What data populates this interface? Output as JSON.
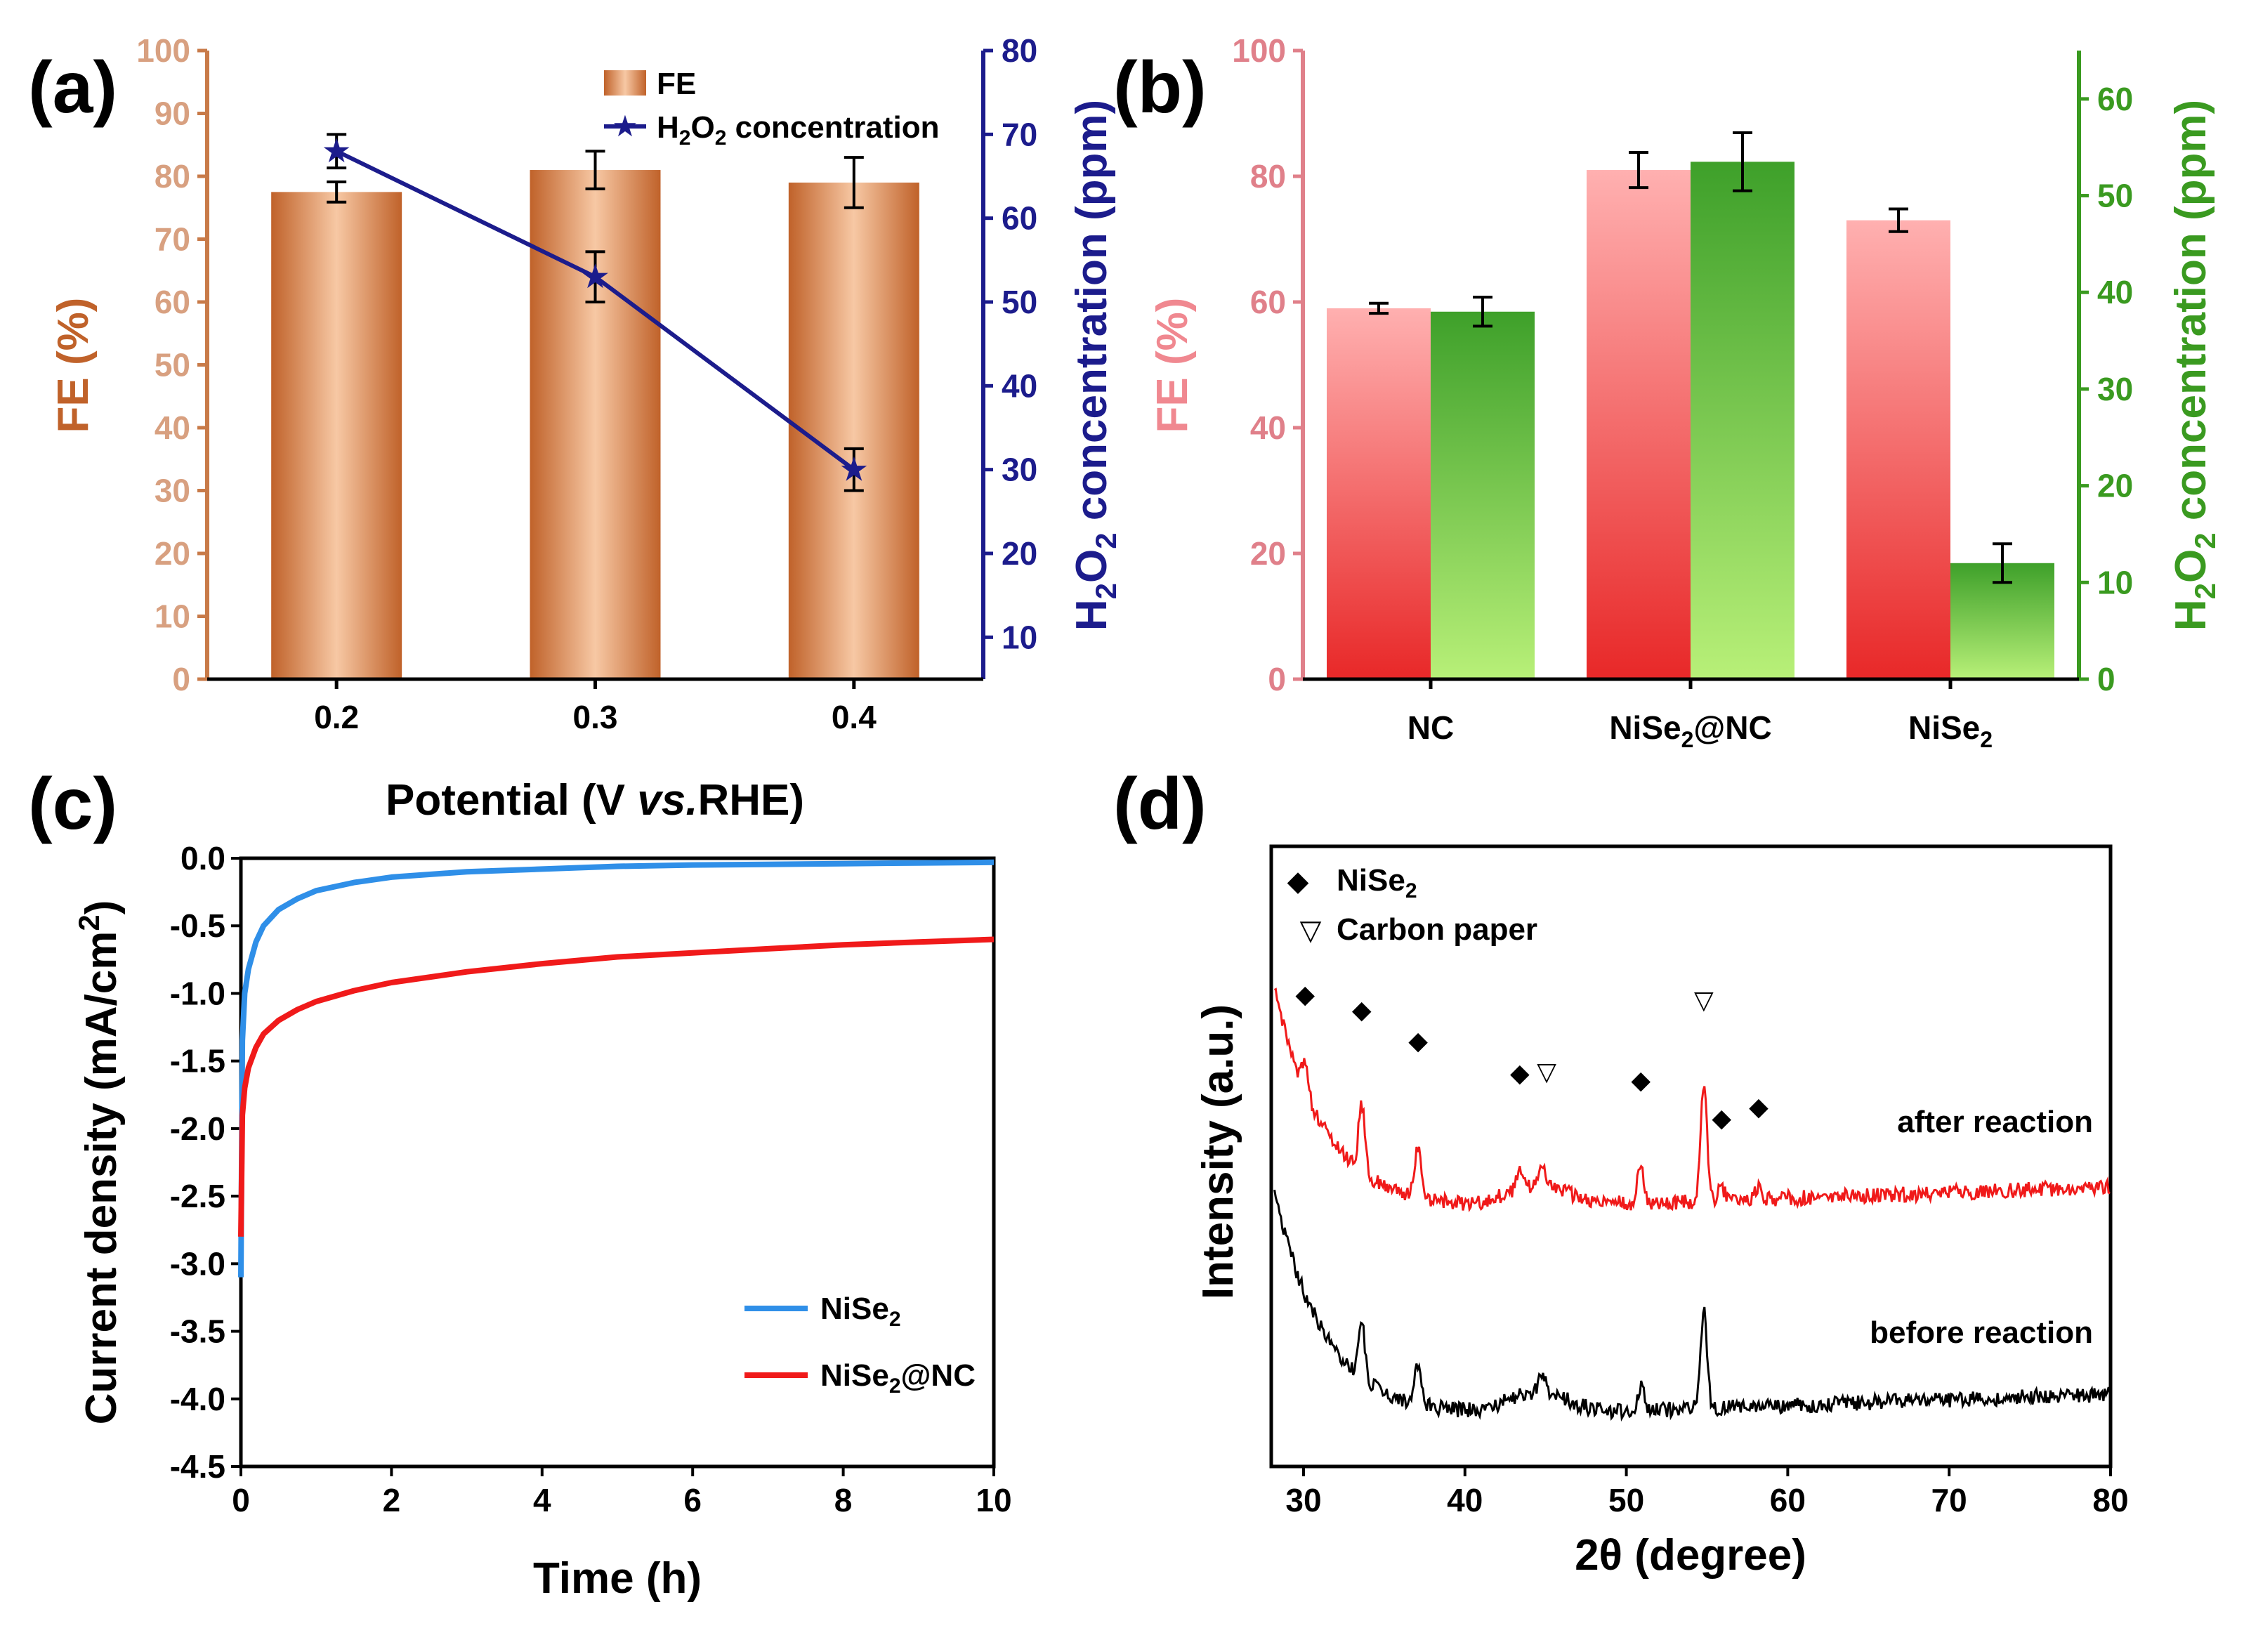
{
  "figure": {
    "panel_labels": [
      "(a)",
      "(b)",
      "(c)",
      "(d)"
    ]
  },
  "chart_data": [
    {
      "panel": "(a)",
      "type": "bar",
      "categories": [
        "0.2",
        "0.3",
        "0.4"
      ],
      "xlabel_parts": [
        "Potential (V ",
        "vs.",
        "RHE)"
      ],
      "ylabel": "FE (%)",
      "ylim": [
        0,
        100
      ],
      "yticks": [
        "0",
        "10",
        "20",
        "30",
        "40",
        "50",
        "60",
        "70",
        "80",
        "90",
        "100"
      ],
      "series": [
        {
          "name": "FE",
          "values": [
            77.5,
            81,
            79
          ],
          "errors": [
            1.6,
            3.0,
            4.0
          ]
        }
      ],
      "y2label": [
        "H",
        "2",
        "O",
        "2",
        " concentration (ppm)"
      ],
      "y2lim": [
        5,
        80
      ],
      "y2ticks": [
        "10",
        "20",
        "30",
        "40",
        "50",
        "60",
        "70",
        "80"
      ],
      "series2": [
        {
          "name": "H2O2 concentration",
          "values": [
            68,
            53,
            30
          ],
          "errors": [
            2.0,
            3.0,
            2.5
          ]
        }
      ],
      "legend": {
        "fe": "FE",
        "h2o2_parts": [
          "H",
          "2",
          "O",
          "2",
          " concentration"
        ]
      },
      "colors": {
        "fe": "#c0622a",
        "fe_light": "#f7c8a4",
        "h2o2": "#1c1c8c",
        "axis_left": "#c87a48",
        "tick_left": "#d8a080"
      }
    },
    {
      "panel": "(b)",
      "type": "bar",
      "categories": [
        "NC",
        "NiSe2@NC",
        "NiSe2"
      ],
      "category_parts": [
        [
          "NC"
        ],
        [
          "NiSe",
          "2",
          "@NC"
        ],
        [
          "NiSe",
          "2"
        ]
      ],
      "ylabel": "FE (%)",
      "ylim": [
        0,
        100
      ],
      "yticks": [
        "0",
        "20",
        "40",
        "60",
        "80",
        "100"
      ],
      "series": [
        {
          "name": "FE",
          "values": [
            59,
            81,
            73
          ],
          "errors": [
            0.8,
            2.8,
            1.8
          ]
        }
      ],
      "y2label": [
        "H",
        "2",
        "O",
        "2",
        " concentration (ppm)"
      ],
      "y2lim": [
        0,
        65
      ],
      "y2ticks": [
        "0",
        "10",
        "20",
        "30",
        "40",
        "50",
        "60"
      ],
      "series2": [
        {
          "name": "H2O2 concentration",
          "values": [
            38,
            53.5,
            12
          ],
          "errors": [
            1.5,
            3.0,
            2.0
          ]
        }
      ],
      "colors": {
        "fe": "#e03030",
        "fe_light": "#ffc0c0",
        "h2o2": "#3ea02a",
        "h2o2_light": "#b8f078",
        "axis_left": "#e0808a",
        "axis_right": "#3a9a20"
      }
    },
    {
      "panel": "(c)",
      "type": "line",
      "xlabel": "Time (h)",
      "ylabel": "Current density (mA/cm",
      "ylabel_sup": "2",
      "ylabel_end": ")",
      "xlim": [
        0,
        10
      ],
      "ylim": [
        -4.5,
        0
      ],
      "xticks": [
        "0",
        "2",
        "4",
        "6",
        "8",
        "10"
      ],
      "yticks": [
        "0.0",
        "-0.5",
        "-1.0",
        "-1.5",
        "-2.0",
        "-2.5",
        "-3.0",
        "-3.5",
        "-4.0",
        "-4.5"
      ],
      "series": [
        {
          "name": "NiSe2",
          "label_parts": [
            "NiSe",
            "2",
            ""
          ],
          "color": "#2f8fe8",
          "x": [
            0,
            0.02,
            0.05,
            0.1,
            0.2,
            0.3,
            0.5,
            0.75,
            1,
            1.5,
            2,
            3,
            4,
            5,
            6,
            7,
            8,
            9,
            10
          ],
          "y": [
            -3.1,
            -1.35,
            -1.0,
            -0.82,
            -0.62,
            -0.5,
            -0.38,
            -0.3,
            -0.24,
            -0.18,
            -0.14,
            -0.1,
            -0.08,
            -0.06,
            -0.05,
            -0.045,
            -0.04,
            -0.035,
            -0.03
          ]
        },
        {
          "name": "NiSe2@NC",
          "label_parts": [
            "NiSe",
            "2",
            "@NC"
          ],
          "color": "#f01a1a",
          "x": [
            0,
            0.02,
            0.05,
            0.1,
            0.2,
            0.3,
            0.5,
            0.75,
            1,
            1.5,
            2,
            3,
            4,
            5,
            6,
            7,
            8,
            9,
            10
          ],
          "y": [
            -2.8,
            -1.9,
            -1.7,
            -1.55,
            -1.4,
            -1.3,
            -1.2,
            -1.12,
            -1.06,
            -0.98,
            -0.92,
            -0.84,
            -0.78,
            -0.73,
            -0.7,
            -0.67,
            -0.64,
            -0.62,
            -0.6
          ]
        }
      ]
    },
    {
      "panel": "(d)",
      "type": "line",
      "xlabel": "2θ (degree)",
      "ylabel": "Intensity (a.u.)",
      "xlim": [
        28,
        80
      ],
      "xticks": [
        "30",
        "40",
        "50",
        "60",
        "70",
        "80"
      ],
      "series": [
        {
          "name": "after reaction",
          "color": "#f01a1a",
          "peaks": [
            30.1,
            33.6,
            37.1,
            43.4,
            44.8,
            50.9,
            54.8,
            55.9,
            58.2
          ]
        },
        {
          "name": "before reaction",
          "color": "#000000",
          "peaks": [
            33.6,
            37.1,
            44.8,
            50.9,
            54.8
          ]
        }
      ],
      "legend": {
        "nise2_parts": [
          "NiSe",
          "2"
        ],
        "carbon": "Carbon paper"
      },
      "markers": {
        "nise2": [
          30.1,
          33.6,
          37.1,
          43.4,
          50.9,
          55.9,
          58.2
        ],
        "carbon_paper": [
          44.8,
          54.8
        ]
      }
    }
  ]
}
